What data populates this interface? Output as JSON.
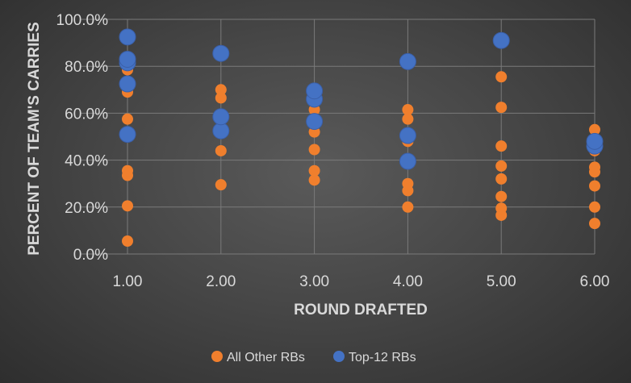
{
  "chart_data": {
    "type": "scatter",
    "xlabel": "ROUND DRAFTED",
    "ylabel": "PERCENT OF TEAM'S CARRIES",
    "xlim": [
      1,
      6
    ],
    "ylim": [
      0,
      100
    ],
    "x_ticks": [
      "1.00",
      "2.00",
      "3.00",
      "4.00",
      "5.00",
      "6.00"
    ],
    "y_ticks": [
      "0.0%",
      "20.0%",
      "40.0%",
      "60.0%",
      "80.0%",
      "100.0%"
    ],
    "grid": true,
    "legend_position": "bottom",
    "series": [
      {
        "name": "All Other RBs",
        "color": "#f07f2d",
        "points": [
          {
            "x": 1,
            "y": 5.5
          },
          {
            "x": 1,
            "y": 20.5
          },
          {
            "x": 1,
            "y": 33.5
          },
          {
            "x": 1,
            "y": 35.5
          },
          {
            "x": 1,
            "y": 57.5
          },
          {
            "x": 1,
            "y": 69
          },
          {
            "x": 1,
            "y": 78.5
          },
          {
            "x": 2,
            "y": 29.5
          },
          {
            "x": 2,
            "y": 44
          },
          {
            "x": 2,
            "y": 66.5
          },
          {
            "x": 2,
            "y": 70
          },
          {
            "x": 2,
            "y": 84.5
          },
          {
            "x": 3,
            "y": 31.5
          },
          {
            "x": 3,
            "y": 35.5
          },
          {
            "x": 3,
            "y": 44.5
          },
          {
            "x": 3,
            "y": 52
          },
          {
            "x": 3,
            "y": 61.5
          },
          {
            "x": 4,
            "y": 20
          },
          {
            "x": 4,
            "y": 27
          },
          {
            "x": 4,
            "y": 30
          },
          {
            "x": 4,
            "y": 48
          },
          {
            "x": 4,
            "y": 57.5
          },
          {
            "x": 4,
            "y": 61.5
          },
          {
            "x": 5,
            "y": 16.5
          },
          {
            "x": 5,
            "y": 19.5
          },
          {
            "x": 5,
            "y": 24.5
          },
          {
            "x": 5,
            "y": 32
          },
          {
            "x": 5,
            "y": 37.5
          },
          {
            "x": 5,
            "y": 46
          },
          {
            "x": 5,
            "y": 62.5
          },
          {
            "x": 5,
            "y": 75.5
          },
          {
            "x": 6,
            "y": 13
          },
          {
            "x": 6,
            "y": 20
          },
          {
            "x": 6,
            "y": 29
          },
          {
            "x": 6,
            "y": 35
          },
          {
            "x": 6,
            "y": 37
          },
          {
            "x": 6,
            "y": 44
          },
          {
            "x": 6,
            "y": 53
          }
        ]
      },
      {
        "name": "Top-12 RBs",
        "color": "#4472c4",
        "points": [
          {
            "x": 1,
            "y": 51
          },
          {
            "x": 1,
            "y": 72.5
          },
          {
            "x": 1,
            "y": 81.5
          },
          {
            "x": 1,
            "y": 83
          },
          {
            "x": 1,
            "y": 92.5
          },
          {
            "x": 2,
            "y": 52.5
          },
          {
            "x": 2,
            "y": 58.5
          },
          {
            "x": 2,
            "y": 85.5
          },
          {
            "x": 3,
            "y": 56.5
          },
          {
            "x": 3,
            "y": 66
          },
          {
            "x": 3,
            "y": 69.5
          },
          {
            "x": 4,
            "y": 39.5
          },
          {
            "x": 4,
            "y": 50.5
          },
          {
            "x": 4,
            "y": 82
          },
          {
            "x": 5,
            "y": 91
          },
          {
            "x": 6,
            "y": 46
          },
          {
            "x": 6,
            "y": 48
          }
        ]
      }
    ]
  }
}
